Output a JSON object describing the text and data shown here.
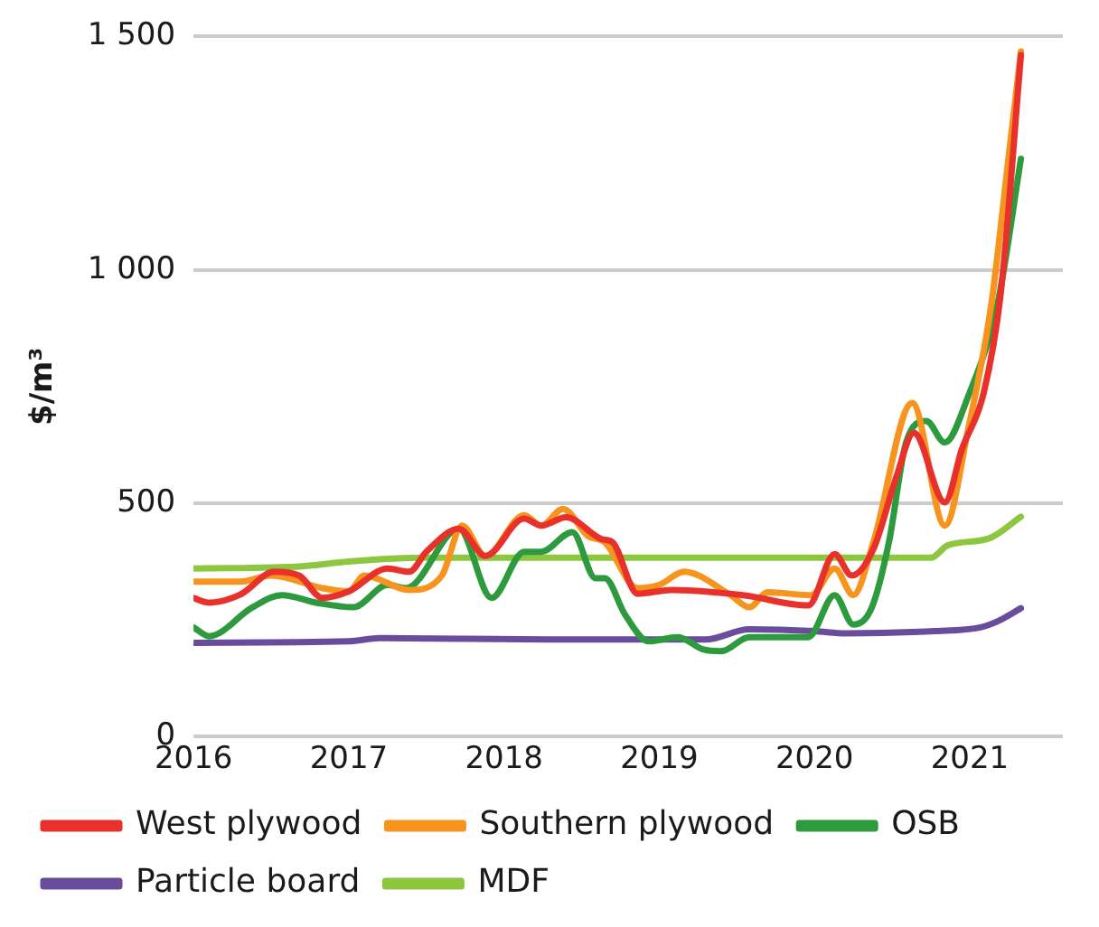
{
  "chart_data": {
    "type": "line",
    "ylabel": "$/m³",
    "xlim": [
      2016,
      2021.6
    ],
    "xticks": [
      2016,
      2017,
      2018,
      2019,
      2020,
      2021
    ],
    "ylim": [
      0,
      1500
    ],
    "yticks": [
      0,
      500,
      {
        "value": 1000,
        "label": "1 000"
      },
      {
        "value": 1500,
        "label": "1 500"
      }
    ],
    "grid": "y",
    "legend": "bottom",
    "marker": "none",
    "line_style": "solid",
    "series": [
      {
        "name": "West plywood",
        "color": "#e8312a",
        "x": [
          2016,
          2016.1,
          2016.3,
          2016.52,
          2016.68,
          2016.83,
          2017,
          2017.25,
          2017.39,
          2017.5,
          2017.71,
          2017.88,
          2018.13,
          2018.24,
          2018.4,
          2018.63,
          2018.7,
          2018.86,
          2019.08,
          2019.54,
          2019.96,
          2020.13,
          2020.24,
          2020.38,
          2020.53,
          2020.64,
          2020.84,
          2020.95,
          2021.09,
          2021.2,
          2021.33
        ],
        "values": [
          297,
          287,
          304,
          353,
          345,
          297,
          311,
          360,
          353,
          396,
          445,
          387,
          467,
          452,
          470,
          423,
          416,
          306,
          314,
          303,
          281,
          391,
          345,
          402,
          559,
          651,
          502,
          616,
          736,
          950,
          1460
        ]
      },
      {
        "name": "Southern plywood",
        "color": "#f7941d",
        "x": [
          2016,
          2016.3,
          2016.5,
          2016.83,
          2017,
          2017.1,
          2017.39,
          2017.6,
          2017.73,
          2017.88,
          2018.13,
          2018.24,
          2018.38,
          2018.54,
          2018.65,
          2018.86,
          2019,
          2019.16,
          2019.46,
          2019.58,
          2019.7,
          2019.98,
          2020.13,
          2020.25,
          2020.38,
          2020.63,
          2020.84,
          2020.99,
          2021.14,
          2021.25,
          2021.33
        ],
        "values": [
          332,
          332,
          345,
          318,
          311,
          345,
          314,
          345,
          452,
          387,
          474,
          452,
          488,
          430,
          416,
          318,
          325,
          353,
          303,
          277,
          309,
          303,
          360,
          303,
          417,
          715,
          452,
          658,
          928,
          1240,
          1468
        ]
      },
      {
        "name": "OSB",
        "color": "#2e9a3e",
        "x": [
          2016,
          2016.1,
          2016.38,
          2016.57,
          2016.8,
          2017.03,
          2017.25,
          2017.37,
          2017.71,
          2017.92,
          2018.13,
          2018.24,
          2018.44,
          2018.59,
          2018.65,
          2018.78,
          2018.93,
          2019.12,
          2019.28,
          2019.4,
          2019.58,
          2019.96,
          2020.13,
          2020.25,
          2020.37,
          2020.48,
          2020.59,
          2020.72,
          2020.84,
          2020.99,
          2021.18,
          2021.33
        ],
        "values": [
          234,
          215,
          277,
          303,
          286,
          277,
          325,
          318,
          445,
          297,
          396,
          396,
          438,
          339,
          339,
          261,
          204,
          213,
          187,
          183,
          213,
          213,
          303,
          240,
          277,
          417,
          630,
          676,
          630,
          729,
          928,
          1238
        ]
      },
      {
        "name": "Particle board",
        "color": "#6a4c9c",
        "x": [
          2016,
          2017,
          2017.2,
          2018.3,
          2019.3,
          2019.58,
          2020,
          2020.2,
          2020.77,
          2021.07,
          2021.18,
          2021.33
        ],
        "values": [
          201,
          204,
          211,
          208,
          208,
          230,
          226,
          221,
          226,
          234,
          247,
          275
        ]
      },
      {
        "name": "MDF",
        "color": "#8dc63f",
        "x": [
          2016,
          2016.7,
          2017,
          2017.5,
          2020.3,
          2020.75,
          2020.86,
          2021.12,
          2021.33
        ],
        "values": [
          360,
          365,
          375,
          383,
          383,
          383,
          410,
          424,
          471
        ]
      }
    ]
  }
}
